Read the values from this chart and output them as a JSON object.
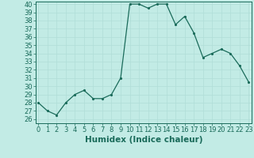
{
  "x": [
    0,
    1,
    2,
    3,
    4,
    5,
    6,
    7,
    8,
    9,
    10,
    11,
    12,
    13,
    14,
    15,
    16,
    17,
    18,
    19,
    20,
    21,
    22,
    23
  ],
  "y": [
    28,
    27,
    26.5,
    28,
    29,
    29.5,
    28.5,
    28.5,
    29,
    31,
    40,
    40,
    39.5,
    40,
    40,
    37.5,
    38.5,
    36.5,
    33.5,
    34,
    34.5,
    34,
    32.5,
    30.5
  ],
  "line_color": "#1a6b5a",
  "marker_color": "#1a6b5a",
  "bg_color": "#c2ebe5",
  "grid_color": "#b0ddd7",
  "xlabel": "Humidex (Indice chaleur)",
  "ylim_min": 25.5,
  "ylim_max": 40.3,
  "xlim_min": -0.3,
  "xlim_max": 23.3,
  "yticks": [
    26,
    27,
    28,
    29,
    30,
    31,
    32,
    33,
    34,
    35,
    36,
    37,
    38,
    39,
    40
  ],
  "xticks": [
    0,
    1,
    2,
    3,
    4,
    5,
    6,
    7,
    8,
    9,
    10,
    11,
    12,
    13,
    14,
    15,
    16,
    17,
    18,
    19,
    20,
    21,
    22,
    23
  ],
  "tick_fontsize": 6,
  "label_fontsize": 7.5
}
